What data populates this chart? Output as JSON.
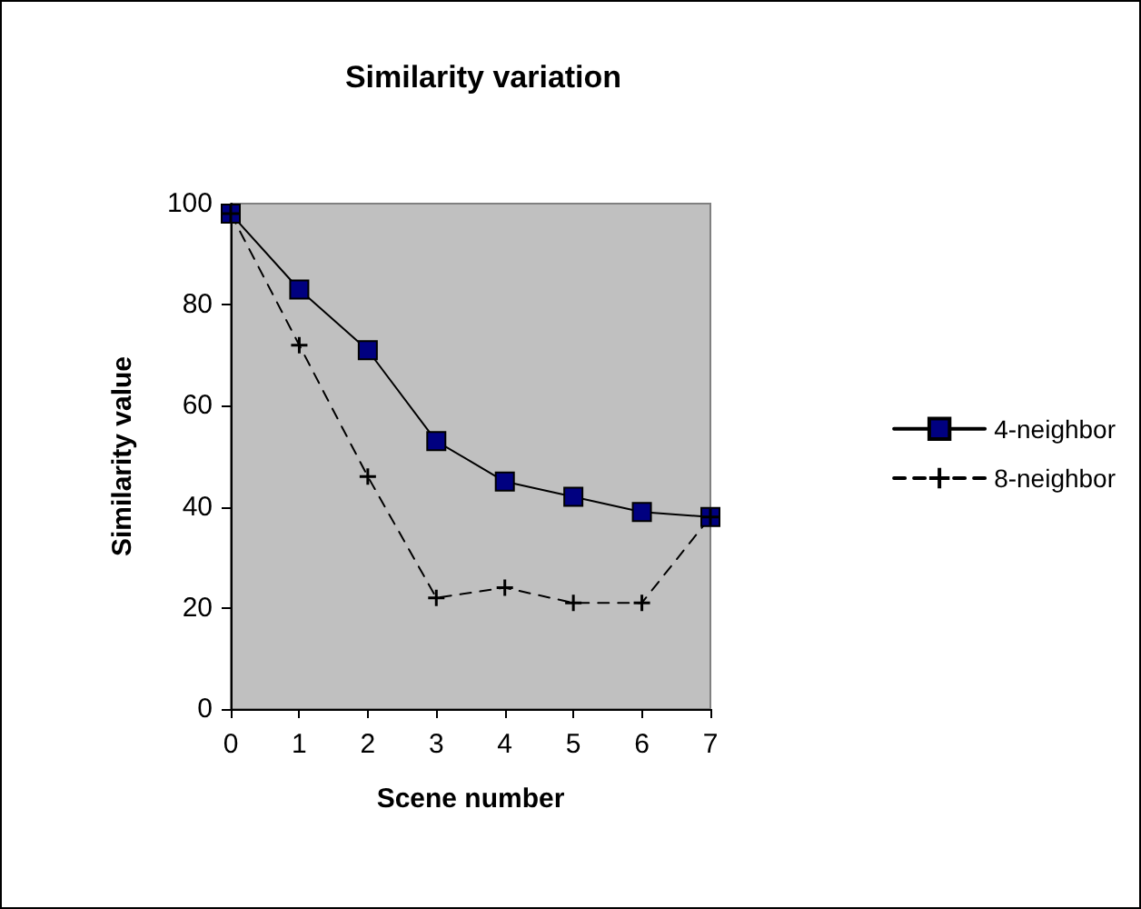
{
  "chart_data": {
    "type": "line",
    "title": "Similarity variation",
    "xlabel": "Scene number",
    "ylabel": "Similarity value",
    "x": [
      0,
      1,
      2,
      3,
      4,
      5,
      6,
      7
    ],
    "series": [
      {
        "name": "4-neighbor",
        "color": "#000080",
        "values": [
          98,
          83,
          71,
          53,
          45,
          42,
          39,
          38
        ],
        "marker": "square",
        "line_style": "solid"
      },
      {
        "name": "8-neighbor",
        "color": "#000000",
        "values": [
          98,
          72,
          46,
          22,
          24,
          21,
          21,
          38
        ],
        "marker": "cross",
        "line_style": "dashed"
      }
    ],
    "xlim": [
      0,
      7
    ],
    "xticks": [
      0,
      1,
      2,
      3,
      4,
      5,
      6,
      7
    ],
    "ylim": [
      0,
      100
    ],
    "yticks": [
      0,
      20,
      40,
      60,
      80,
      100
    ],
    "grid": false,
    "legend": "right"
  }
}
